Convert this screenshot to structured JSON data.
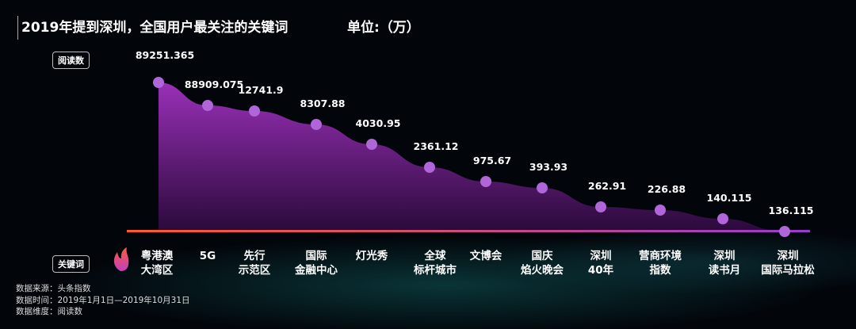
{
  "chart_data": {
    "type": "area",
    "title": "2019年提到深圳，全国用户最关注的关键词",
    "unit": "单位:（万）",
    "ylabel": "阅读数",
    "xlabel": "关键词",
    "categories": [
      "粤港澳\n大湾区",
      "5G",
      "先行\n示范区",
      "国际\n金融中心",
      "灯光秀",
      "全球\n标杆城市",
      "文博会",
      "国庆\n焰火晚会",
      "深圳\n40年",
      "营商环境\n指数",
      "深圳\n读书月",
      "深圳\n国际马拉松"
    ],
    "values": [
      89251.365,
      88909.075,
      12741.9,
      8307.88,
      4030.95,
      2361.12,
      975.67,
      393.93,
      262.91,
      226.88,
      140.115,
      136.115
    ],
    "value_labels": [
      "89251.365",
      "88909.075",
      "12741.9",
      "8307.88",
      "4030.95",
      "2361.12",
      "975.67",
      "393.93",
      "262.91",
      "226.88",
      "140.115",
      "136.115"
    ],
    "colors": {
      "area_top": "#8a2aa8",
      "area_bottom": "#2a0a3a",
      "point": "#b066d8",
      "axis_start": "#ff5a2a",
      "axis_end": "#9a3ad0"
    }
  },
  "footer": {
    "source": "数据来源：头条指数",
    "period": "数据时间：2019年1月1日—2019年10月31日",
    "dimension": "数据维度：阅读数"
  },
  "icons": {
    "hot": "flame-icon"
  }
}
